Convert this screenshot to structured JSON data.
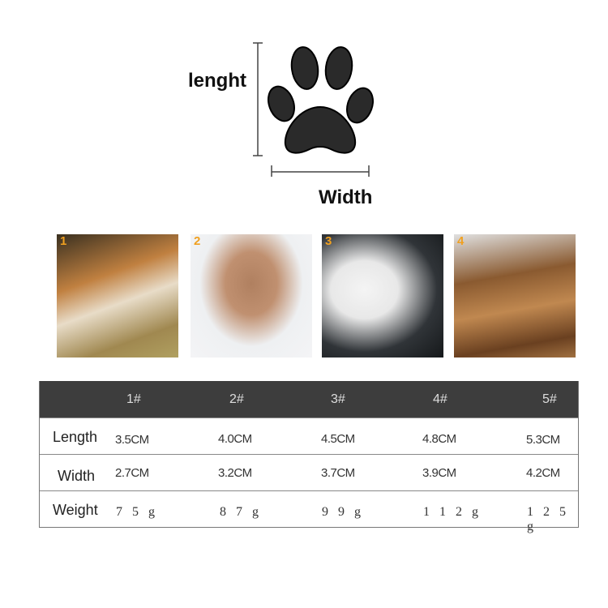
{
  "diagram": {
    "length_label": "lenght",
    "width_label": "Width"
  },
  "photos": [
    {
      "number": "1"
    },
    {
      "number": "2"
    },
    {
      "number": "3"
    },
    {
      "number": "4"
    }
  ],
  "table": {
    "headers": [
      "1#",
      "2#",
      "3#",
      "4#",
      "5#"
    ],
    "rows": [
      {
        "label": "Length",
        "values": [
          "3.5CM",
          "4.0CM",
          "4.5CM",
          "4.8CM",
          "5.3CM"
        ]
      },
      {
        "label": "Width",
        "values": [
          "2.7CM",
          "3.2CM",
          "3.7CM",
          "3.9CM",
          "4.2CM"
        ]
      },
      {
        "label": "Weight",
        "values": [
          "7 5 g",
          "8 7 g",
          "9 9 g",
          "1 1 2 g",
          "1 2 5 g"
        ]
      }
    ]
  }
}
